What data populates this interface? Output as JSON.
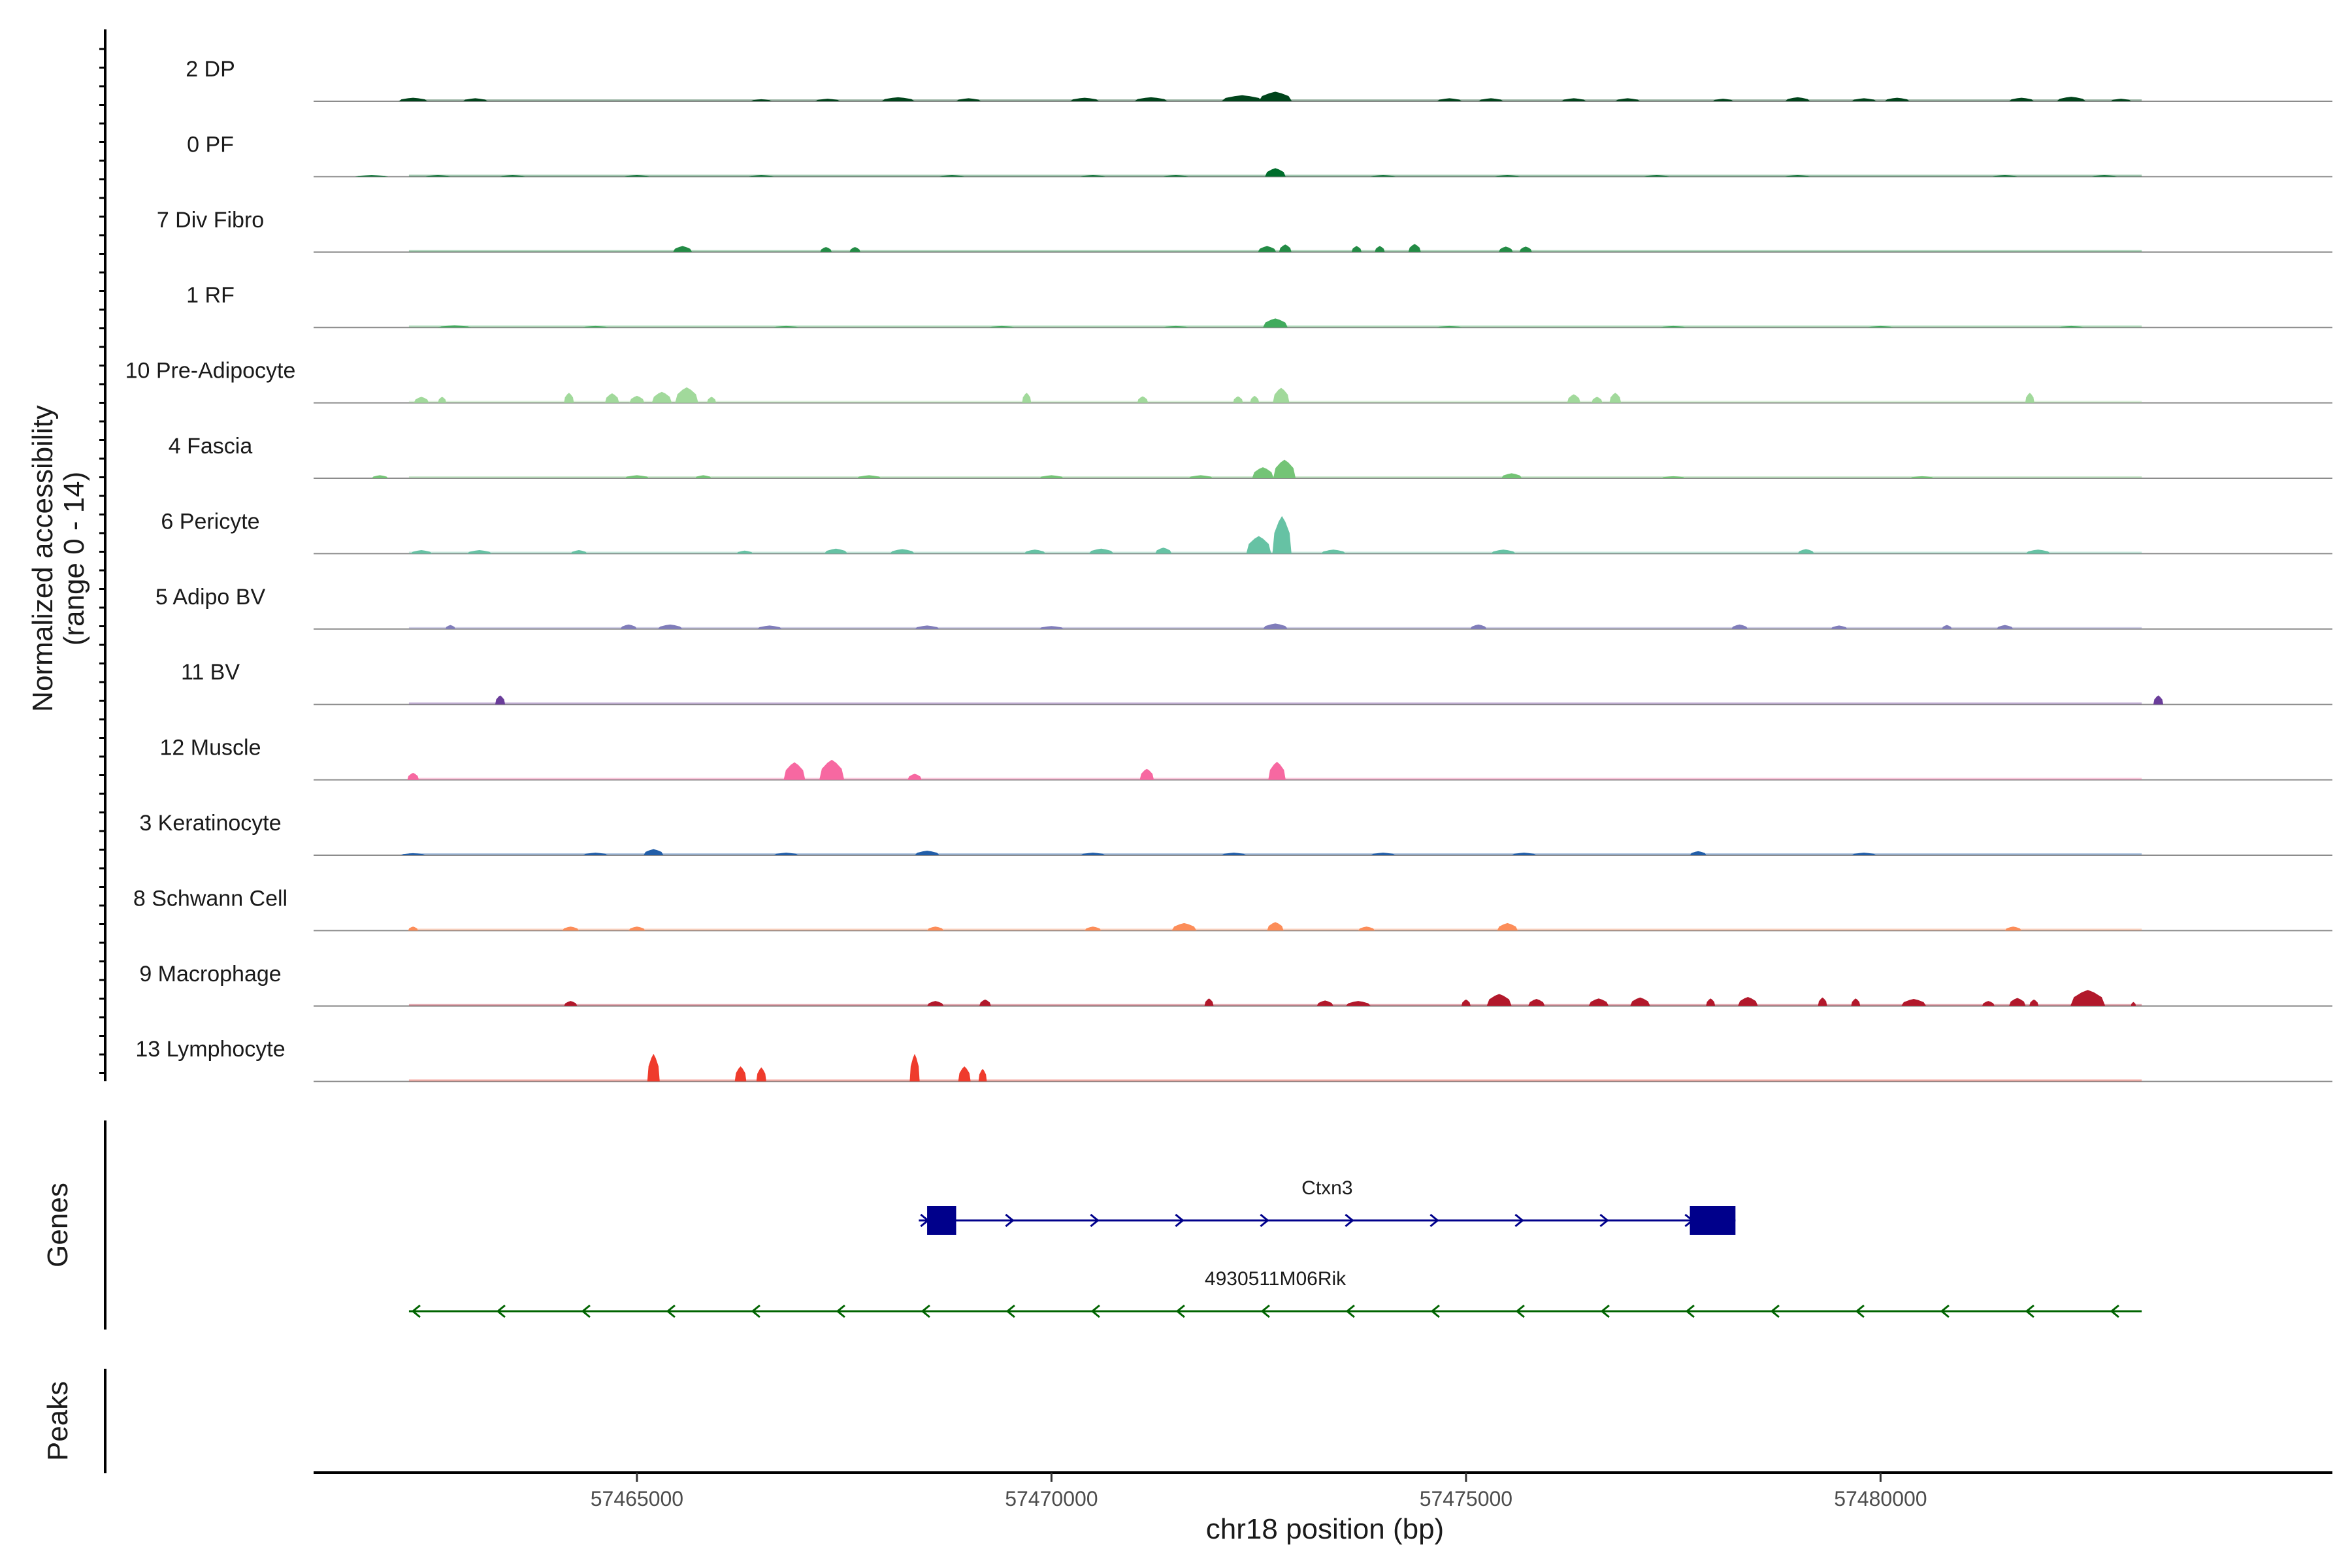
{
  "chart_data": {
    "type": "coverage-tracks",
    "chromosome": "chr18",
    "xlabel": "chr18 position (bp)",
    "x_range": [
      57461100,
      57485450
    ],
    "x_ticks": [
      57465000,
      57470000,
      57475000,
      57480000
    ],
    "x_tick_labels": [
      "57465000",
      "57470000",
      "57475000",
      "57480000"
    ],
    "ylabel_line1": "Normalized accessibility",
    "ylabel_line2": "(range 0 - 14)",
    "y_range": [
      0,
      14
    ],
    "tracks": [
      {
        "name": "2 DP",
        "color": "#00441b",
        "peaks": [
          [
            57462300,
            0.7,
            350
          ],
          [
            57463050,
            0.6,
            300
          ],
          [
            57466500,
            0.4,
            250
          ],
          [
            57467300,
            0.5,
            300
          ],
          [
            57468150,
            0.8,
            400
          ],
          [
            57469000,
            0.6,
            300
          ],
          [
            57470400,
            0.7,
            350
          ],
          [
            57471200,
            0.8,
            400
          ],
          [
            57472300,
            1.2,
            500
          ],
          [
            57472700,
            1.9,
            400
          ],
          [
            57474800,
            0.6,
            300
          ],
          [
            57475300,
            0.6,
            300
          ],
          [
            57476300,
            0.6,
            300
          ],
          [
            57476950,
            0.6,
            300
          ],
          [
            57478100,
            0.5,
            250
          ],
          [
            57479000,
            0.8,
            300
          ],
          [
            57479800,
            0.6,
            300
          ],
          [
            57480200,
            0.7,
            300
          ],
          [
            57481700,
            0.7,
            300
          ],
          [
            57482300,
            0.9,
            350
          ],
          [
            57482900,
            0.5,
            250
          ]
        ]
      },
      {
        "name": "0 PF",
        "color": "#006d2c",
        "peaks": [
          [
            57461800,
            0.3,
            400
          ],
          [
            57462600,
            0.3,
            300
          ],
          [
            57463500,
            0.3,
            300
          ],
          [
            57465000,
            0.3,
            300
          ],
          [
            57466500,
            0.3,
            300
          ],
          [
            57468800,
            0.3,
            300
          ],
          [
            57470500,
            0.3,
            300
          ],
          [
            57471500,
            0.3,
            300
          ],
          [
            57472700,
            1.7,
            250
          ],
          [
            57474000,
            0.3,
            300
          ],
          [
            57475500,
            0.3,
            300
          ],
          [
            57477300,
            0.3,
            300
          ],
          [
            57479000,
            0.3,
            300
          ],
          [
            57481500,
            0.3,
            300
          ],
          [
            57482700,
            0.3,
            300
          ]
        ]
      },
      {
        "name": "7 Div Fibro",
        "color": "#238b45",
        "peaks": [
          [
            57465550,
            1.2,
            230
          ],
          [
            57467280,
            1.0,
            140
          ],
          [
            57467630,
            1.0,
            130
          ],
          [
            57472600,
            1.2,
            220
          ],
          [
            57472820,
            1.5,
            150
          ],
          [
            57473680,
            1.2,
            120
          ],
          [
            57473960,
            1.2,
            120
          ],
          [
            57474380,
            1.6,
            150
          ],
          [
            57475480,
            1.1,
            170
          ],
          [
            57475720,
            1.1,
            150
          ]
        ]
      },
      {
        "name": "1 RF",
        "color": "#41ab5d",
        "peaks": [
          [
            57462800,
            0.4,
            400
          ],
          [
            57464500,
            0.3,
            300
          ],
          [
            57466800,
            0.3,
            300
          ],
          [
            57469400,
            0.3,
            300
          ],
          [
            57471500,
            0.3,
            300
          ],
          [
            57472700,
            1.8,
            300
          ],
          [
            57474800,
            0.3,
            300
          ],
          [
            57477500,
            0.3,
            300
          ],
          [
            57480000,
            0.3,
            300
          ],
          [
            57482300,
            0.3,
            300
          ]
        ]
      },
      {
        "name": "10 Pre-Adipocyte",
        "color": "#a1d99b",
        "peaks": [
          [
            57462400,
            1.2,
            180
          ],
          [
            57462650,
            1.2,
            100
          ],
          [
            57464180,
            2.0,
            120
          ],
          [
            57464700,
            1.9,
            170
          ],
          [
            57465000,
            1.4,
            180
          ],
          [
            57465300,
            2.2,
            240
          ],
          [
            57465600,
            3.1,
            280
          ],
          [
            57465900,
            1.2,
            110
          ],
          [
            57469700,
            2.0,
            110
          ],
          [
            57471100,
            1.3,
            130
          ],
          [
            57472250,
            1.3,
            120
          ],
          [
            57472450,
            1.4,
            110
          ],
          [
            57472770,
            3.0,
            200
          ],
          [
            57476300,
            1.7,
            160
          ],
          [
            57476580,
            1.2,
            130
          ],
          [
            57476800,
            2.0,
            140
          ],
          [
            57481800,
            2.0,
            110
          ]
        ]
      },
      {
        "name": "4 Fascia",
        "color": "#74c476",
        "peaks": [
          [
            57461900,
            0.6,
            200
          ],
          [
            57465000,
            0.6,
            300
          ],
          [
            57465800,
            0.6,
            200
          ],
          [
            57467800,
            0.6,
            300
          ],
          [
            57470000,
            0.6,
            300
          ],
          [
            57471800,
            0.6,
            300
          ],
          [
            57472550,
            2.2,
            260
          ],
          [
            57472810,
            3.7,
            270
          ],
          [
            57475550,
            1.0,
            250
          ],
          [
            57477500,
            0.4,
            300
          ],
          [
            57480500,
            0.4,
            300
          ]
        ]
      },
      {
        "name": "6 Pericyte",
        "color": "#66c2a4",
        "peaks": [
          [
            57462400,
            0.7,
            260
          ],
          [
            57463100,
            0.7,
            300
          ],
          [
            57464300,
            0.7,
            200
          ],
          [
            57466300,
            0.6,
            200
          ],
          [
            57467400,
            1.0,
            280
          ],
          [
            57468200,
            0.9,
            300
          ],
          [
            57469800,
            0.8,
            260
          ],
          [
            57470600,
            1.0,
            300
          ],
          [
            57471350,
            1.2,
            200
          ],
          [
            57472500,
            3.5,
            300
          ],
          [
            57472780,
            7.5,
            230
          ],
          [
            57473400,
            0.8,
            300
          ],
          [
            57475450,
            0.8,
            300
          ],
          [
            57479100,
            0.9,
            200
          ],
          [
            57481900,
            0.8,
            300
          ]
        ]
      },
      {
        "name": "5 Adipo BV",
        "color": "#807dba",
        "peaks": [
          [
            57462750,
            0.8,
            120
          ],
          [
            57464900,
            0.9,
            200
          ],
          [
            57465400,
            0.9,
            300
          ],
          [
            57466600,
            0.7,
            300
          ],
          [
            57468500,
            0.7,
            300
          ],
          [
            57470000,
            0.6,
            300
          ],
          [
            57472700,
            1.1,
            300
          ],
          [
            57475150,
            0.9,
            200
          ],
          [
            57478300,
            0.9,
            200
          ],
          [
            57479500,
            0.7,
            200
          ],
          [
            57480800,
            0.8,
            120
          ],
          [
            57481500,
            0.8,
            200
          ]
        ]
      },
      {
        "name": "11 BV",
        "color": "#6a3d9a",
        "peaks": [
          [
            57463350,
            1.8,
            120
          ],
          [
            57483350,
            1.8,
            120
          ]
        ]
      },
      {
        "name": "12 Muscle",
        "color": "#f768a1",
        "peaks": [
          [
            57462300,
            1.4,
            140
          ],
          [
            57466900,
            3.5,
            260
          ],
          [
            57467350,
            4.0,
            300
          ],
          [
            57468350,
            1.2,
            170
          ],
          [
            57471150,
            2.2,
            170
          ],
          [
            57472720,
            3.6,
            210
          ]
        ]
      },
      {
        "name": "3 Keratinocyte",
        "color": "#225ea8",
        "peaks": [
          [
            57462300,
            0.4,
            300
          ],
          [
            57464500,
            0.5,
            300
          ],
          [
            57465200,
            1.2,
            240
          ],
          [
            57466800,
            0.5,
            300
          ],
          [
            57468500,
            0.9,
            300
          ],
          [
            57470500,
            0.5,
            300
          ],
          [
            57472200,
            0.5,
            300
          ],
          [
            57474000,
            0.5,
            300
          ],
          [
            57475700,
            0.5,
            300
          ],
          [
            57477800,
            0.8,
            200
          ],
          [
            57479800,
            0.5,
            300
          ]
        ]
      },
      {
        "name": "8 Schwann Cell",
        "color": "#fc8d59",
        "peaks": [
          [
            57462300,
            0.8,
            120
          ],
          [
            57464200,
            0.8,
            200
          ],
          [
            57465000,
            0.8,
            200
          ],
          [
            57468600,
            0.8,
            200
          ],
          [
            57470500,
            0.8,
            200
          ],
          [
            57471600,
            1.5,
            300
          ],
          [
            57472700,
            1.7,
            200
          ],
          [
            57473800,
            0.8,
            200
          ],
          [
            57475500,
            1.5,
            250
          ],
          [
            57481600,
            0.8,
            200
          ]
        ]
      },
      {
        "name": "9 Macrophage",
        "color": "#b2182b",
        "peaks": [
          [
            57464200,
            1.0,
            160
          ],
          [
            57468600,
            1.0,
            200
          ],
          [
            57469200,
            1.3,
            140
          ],
          [
            57471900,
            1.5,
            110
          ],
          [
            57473300,
            1.1,
            200
          ],
          [
            57473700,
            1.0,
            300
          ],
          [
            57475000,
            1.3,
            110
          ],
          [
            57475400,
            2.4,
            300
          ],
          [
            57475850,
            1.4,
            200
          ],
          [
            57476600,
            1.5,
            240
          ],
          [
            57477100,
            1.7,
            240
          ],
          [
            57477950,
            1.5,
            110
          ],
          [
            57478400,
            1.8,
            240
          ],
          [
            57479300,
            1.7,
            110
          ],
          [
            57479700,
            1.5,
            110
          ],
          [
            57480400,
            1.4,
            300
          ],
          [
            57481300,
            1.0,
            150
          ],
          [
            57481650,
            1.6,
            200
          ],
          [
            57481850,
            1.3,
            110
          ],
          [
            57482500,
            3.2,
            420
          ],
          [
            57483050,
            0.8,
            60
          ]
        ]
      },
      {
        "name": "13 Lymphocyte",
        "color": "#ef3b2c",
        "peaks": [
          [
            57465200,
            5.5,
            150
          ],
          [
            57466250,
            3.0,
            140
          ],
          [
            57466500,
            2.8,
            120
          ],
          [
            57468350,
            5.5,
            120
          ],
          [
            57468950,
            3.0,
            150
          ],
          [
            57469170,
            2.5,
            100
          ]
        ]
      }
    ],
    "genes_label": "Genes",
    "peaks_label": "Peaks",
    "genes": [
      {
        "name": "Ctxn3",
        "strand": "+",
        "start": 57468400,
        "end": 57478250,
        "color": "#00008b",
        "exons": [
          [
            57468500,
            57468850
          ],
          [
            57477700,
            57478250
          ]
        ]
      },
      {
        "name": "4930511M06Rik",
        "strand": "-",
        "start": 57462250,
        "end": 57483150,
        "color": "#006400",
        "exons": []
      }
    ]
  }
}
